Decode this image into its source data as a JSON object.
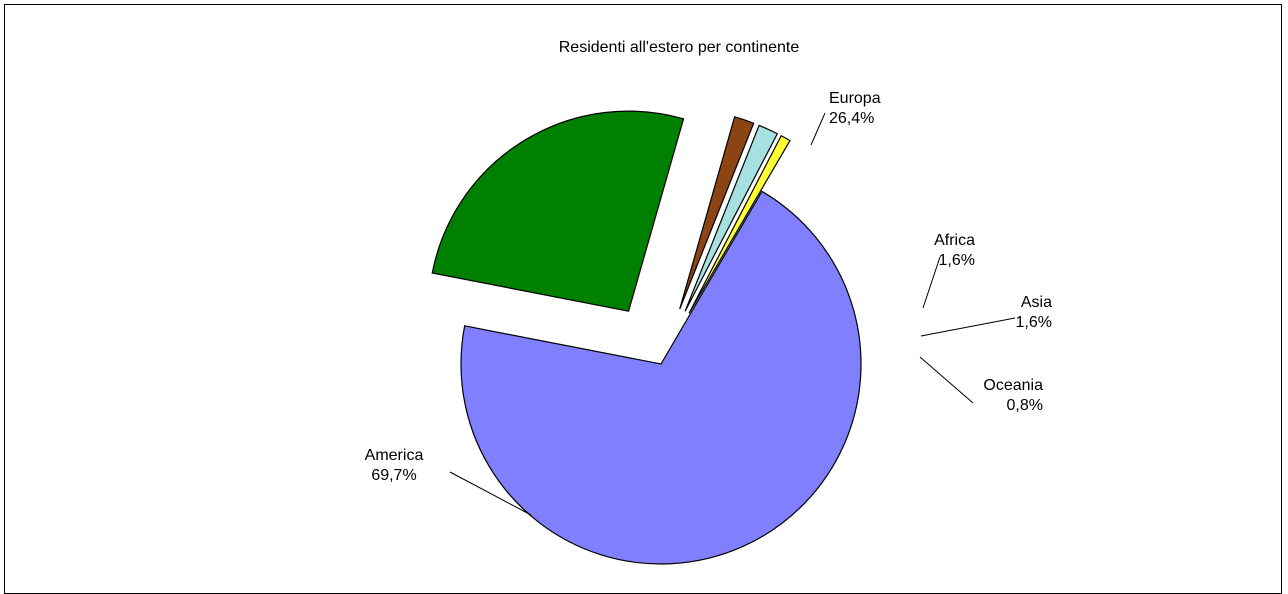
{
  "chart_data": {
    "type": "pie",
    "title": "Residenti all'estero per continente",
    "slices": [
      {
        "label": "Europa",
        "percent_label": "26,4%",
        "value": 26.4,
        "color": "#008000"
      },
      {
        "label": "Africa",
        "percent_label": "1,6%",
        "value": 1.6,
        "color": "#8B4513"
      },
      {
        "label": "Asia",
        "percent_label": "1,6%",
        "value": 1.6,
        "color": "#A6E0E0"
      },
      {
        "label": "Oceania",
        "percent_label": "0,8%",
        "value": 0.8,
        "color": "#FFFF33"
      },
      {
        "label": "America",
        "percent_label": "69,7%",
        "value": 69.7,
        "color": "#8080FF"
      }
    ],
    "exploded": true,
    "legend": "none"
  }
}
